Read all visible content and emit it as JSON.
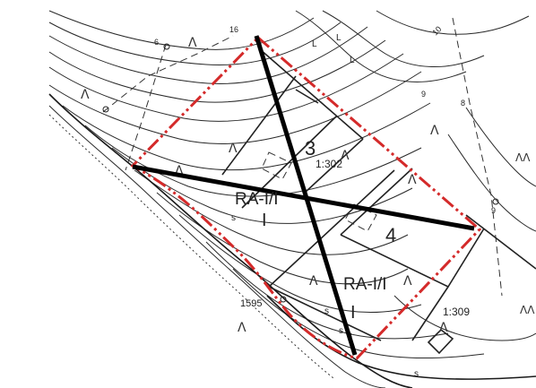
{
  "map": {
    "parcel_labels": [
      {
        "text": "3"
      },
      {
        "text": "4"
      }
    ],
    "area_labels": [
      {
        "text": "1:302"
      },
      {
        "text": "1:309"
      }
    ],
    "zone_labels": [
      {
        "text": "RA-I/I"
      },
      {
        "text": "RA-I/I"
      }
    ],
    "zone_roman": [
      {
        "text": "I"
      },
      {
        "text": "I"
      }
    ],
    "road_number": {
      "text": "1595"
    },
    "contour_numbers": [
      {
        "text": "16"
      },
      {
        "text": "6"
      },
      {
        "text": "10"
      },
      {
        "text": "9"
      },
      {
        "text": "8"
      },
      {
        "text": "9"
      },
      {
        "text": "8"
      }
    ],
    "small_marks": [
      "L",
      "L",
      "L",
      "s",
      "s",
      "s",
      "s"
    ],
    "colors": {
      "boundary": "#d42a2a",
      "cross": "#000000",
      "linework": "#222222"
    }
  }
}
